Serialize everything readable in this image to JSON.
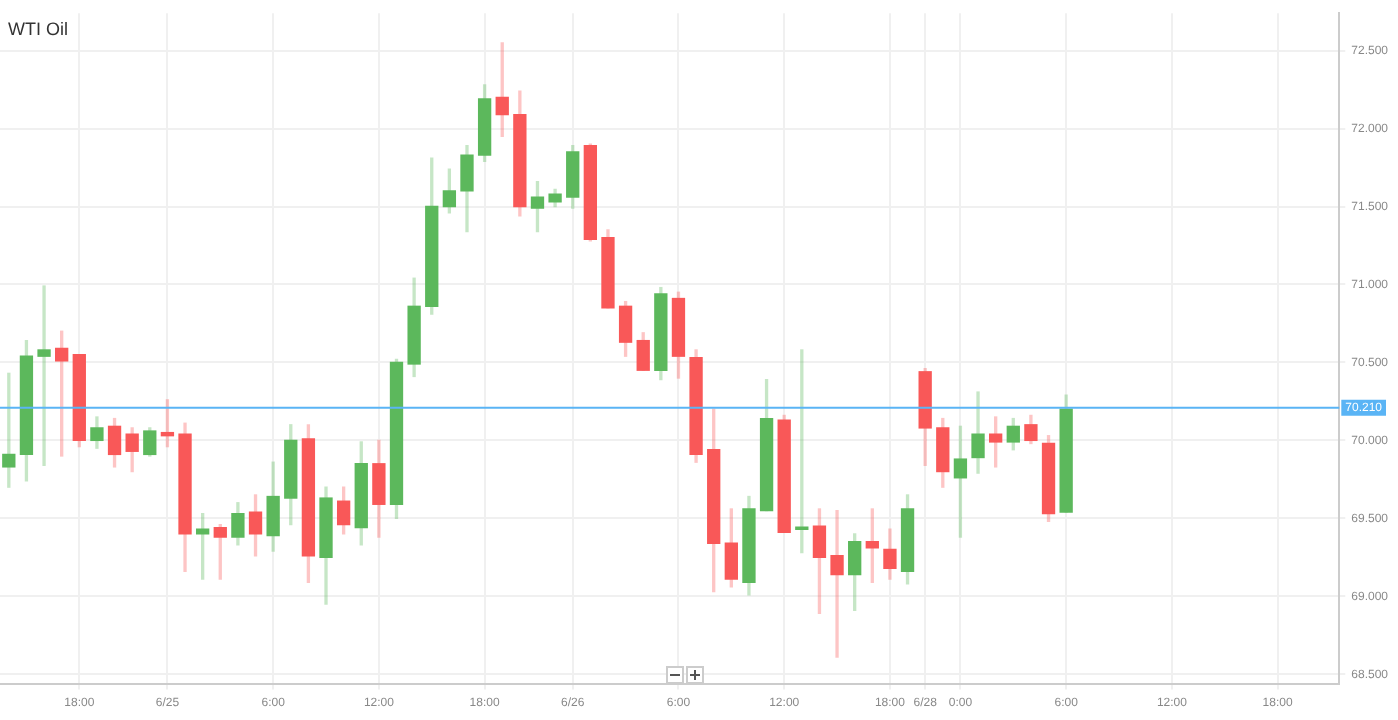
{
  "chart_data": {
    "type": "candlestick",
    "title": "WTI Oil",
    "categories": [
      null,
      null,
      null,
      null,
      "18:00",
      null,
      null,
      null,
      null,
      "6/25",
      null,
      null,
      null,
      null,
      null,
      "6:00",
      null,
      null,
      null,
      null,
      null,
      "12:00",
      null,
      null,
      null,
      null,
      null,
      "18:00",
      null,
      null,
      null,
      null,
      "6/26",
      null,
      null,
      null,
      null,
      null,
      "6:00",
      null,
      null,
      null,
      null,
      null,
      "12:00",
      null,
      null,
      null,
      null,
      null,
      "18:00",
      null,
      "6/28",
      null,
      "0:00",
      null,
      null,
      null,
      null,
      null,
      "6:00",
      null,
      null,
      null,
      null,
      null,
      "12:00",
      null,
      null,
      null,
      null,
      null,
      "18:00",
      null,
      null,
      null
    ],
    "ohlc": [
      [
        69.83,
        70.43,
        69.7,
        69.91
      ],
      [
        69.91,
        70.64,
        69.74,
        70.54
      ],
      [
        70.54,
        70.99,
        69.84,
        70.58
      ],
      [
        70.59,
        70.7,
        69.9,
        70.51
      ],
      [
        70.55,
        70.55,
        69.96,
        70.0
      ],
      [
        70.0,
        70.15,
        69.95,
        70.08
      ],
      [
        70.09,
        70.14,
        69.83,
        69.91
      ],
      [
        70.04,
        70.08,
        69.8,
        69.93
      ],
      [
        69.91,
        70.08,
        69.9,
        70.06
      ],
      [
        70.05,
        70.26,
        69.96,
        70.03
      ],
      [
        70.04,
        70.11,
        69.16,
        69.4
      ],
      [
        69.4,
        69.53,
        69.11,
        69.43
      ],
      [
        69.44,
        69.46,
        69.11,
        69.38
      ],
      [
        69.38,
        69.6,
        69.33,
        69.53
      ],
      [
        69.54,
        69.65,
        69.26,
        69.4
      ],
      [
        69.39,
        69.86,
        69.29,
        69.64
      ],
      [
        69.63,
        70.1,
        69.46,
        70.0
      ],
      [
        70.01,
        70.1,
        69.09,
        69.26
      ],
      [
        69.25,
        69.7,
        68.95,
        69.63
      ],
      [
        69.61,
        69.7,
        69.4,
        69.46
      ],
      [
        69.44,
        69.99,
        69.33,
        69.85
      ],
      [
        69.85,
        70.0,
        69.38,
        69.59
      ],
      [
        69.59,
        70.52,
        69.5,
        70.5
      ],
      [
        70.49,
        71.04,
        70.41,
        70.86
      ],
      [
        70.86,
        71.81,
        70.81,
        71.5
      ],
      [
        71.5,
        71.74,
        71.46,
        71.6
      ],
      [
        71.6,
        71.89,
        71.34,
        71.83
      ],
      [
        71.83,
        72.28,
        71.79,
        72.19
      ],
      [
        72.2,
        72.55,
        71.95,
        72.09
      ],
      [
        72.09,
        72.24,
        71.44,
        71.5
      ],
      [
        71.49,
        71.66,
        71.34,
        71.56
      ],
      [
        71.53,
        71.61,
        71.5,
        71.58
      ],
      [
        71.56,
        71.89,
        71.49,
        71.85
      ],
      [
        71.89,
        71.9,
        71.28,
        71.29
      ],
      [
        71.3,
        71.35,
        70.85,
        70.85
      ],
      [
        70.86,
        70.89,
        70.54,
        70.63
      ],
      [
        70.64,
        70.69,
        70.45,
        70.45
      ],
      [
        70.45,
        70.98,
        70.39,
        70.94
      ],
      [
        70.91,
        70.95,
        70.4,
        70.54
      ],
      [
        70.53,
        70.58,
        69.86,
        69.91
      ],
      [
        69.94,
        70.2,
        69.03,
        69.34
      ],
      [
        69.34,
        69.56,
        69.06,
        69.11
      ],
      [
        69.09,
        69.64,
        69.01,
        69.56
      ],
      [
        69.55,
        70.39,
        69.55,
        70.14
      ],
      [
        70.13,
        70.16,
        69.41,
        69.41
      ],
      [
        69.43,
        70.58,
        69.28,
        69.44
      ],
      [
        69.45,
        69.56,
        68.89,
        69.25
      ],
      [
        69.26,
        69.55,
        68.61,
        69.14
      ],
      [
        69.14,
        69.4,
        68.91,
        69.35
      ],
      [
        69.35,
        69.56,
        69.09,
        69.31
      ],
      [
        69.3,
        69.43,
        69.11,
        69.18
      ],
      [
        69.16,
        69.65,
        69.08,
        69.56
      ],
      [
        70.44,
        70.46,
        69.84,
        70.08
      ],
      [
        70.08,
        70.14,
        69.7,
        69.8
      ],
      [
        69.76,
        70.09,
        69.38,
        69.88
      ],
      [
        69.89,
        70.31,
        69.79,
        70.04
      ],
      [
        70.04,
        70.15,
        69.83,
        69.99
      ],
      [
        69.99,
        70.14,
        69.94,
        70.09
      ],
      [
        70.1,
        70.16,
        69.98,
        70.0
      ],
      [
        69.98,
        70.03,
        69.48,
        69.53
      ],
      [
        69.54,
        70.29,
        69.54,
        70.2
      ],
      null,
      null,
      null,
      null,
      null,
      null,
      null,
      null,
      null,
      null,
      null,
      null,
      null,
      null,
      null
    ],
    "colors": [
      "#5cb85c",
      "#5cb85c",
      "#5cb85c",
      "#f95858",
      "#f95858",
      "#5cb85c",
      "#f95858",
      "#f95858",
      "#5cb85c",
      "#f95858",
      "#f95858",
      "#5cb85c",
      "#f95858",
      "#5cb85c",
      "#f95858",
      "#5cb85c",
      "#5cb85c",
      "#f95858",
      "#5cb85c",
      "#f95858",
      "#5cb85c",
      "#f95858",
      "#5cb85c",
      "#5cb85c",
      "#5cb85c",
      "#5cb85c",
      "#5cb85c",
      "#5cb85c",
      "#f95858",
      "#f95858",
      "#5cb85c",
      "#5cb85c",
      "#5cb85c",
      "#f95858",
      "#f95858",
      "#f95858",
      "#f95858",
      "#5cb85c",
      "#f95858",
      "#f95858",
      "#f95858",
      "#f95858",
      "#5cb85c",
      "#5cb85c",
      "#f95858",
      "#5cb85c",
      "#f95858",
      "#f95858",
      "#5cb85c",
      "#f95858",
      "#f95858",
      "#5cb85c",
      "#f95858",
      "#f95858",
      "#5cb85c",
      "#5cb85c",
      "#f95858",
      "#5cb85c",
      "#f95858",
      "#f95858",
      "#5cb85c",
      null,
      null,
      null,
      null,
      null,
      null,
      null,
      null,
      null,
      null,
      null,
      null,
      null,
      null,
      null
    ],
    "ylim": [
      68.44,
      72.74
    ],
    "yticks": [
      {
        "value": 68.5,
        "label": "68.500"
      },
      {
        "value": 69,
        "label": "69.000"
      },
      {
        "value": 69.5,
        "label": "69.500"
      },
      {
        "value": 70,
        "label": "70.000"
      },
      {
        "value": 70.5,
        "label": "70.500"
      },
      {
        "value": 71,
        "label": "71.000"
      },
      {
        "value": 71.5,
        "label": "71.500"
      },
      {
        "value": 72,
        "label": "72.000"
      },
      {
        "value": 72.5,
        "label": "72.500"
      }
    ],
    "ref_lines": [
      {
        "axis": "y",
        "value": 70.21,
        "label": "70.210",
        "color": "#5ab4f5"
      }
    ],
    "grid": true
  }
}
